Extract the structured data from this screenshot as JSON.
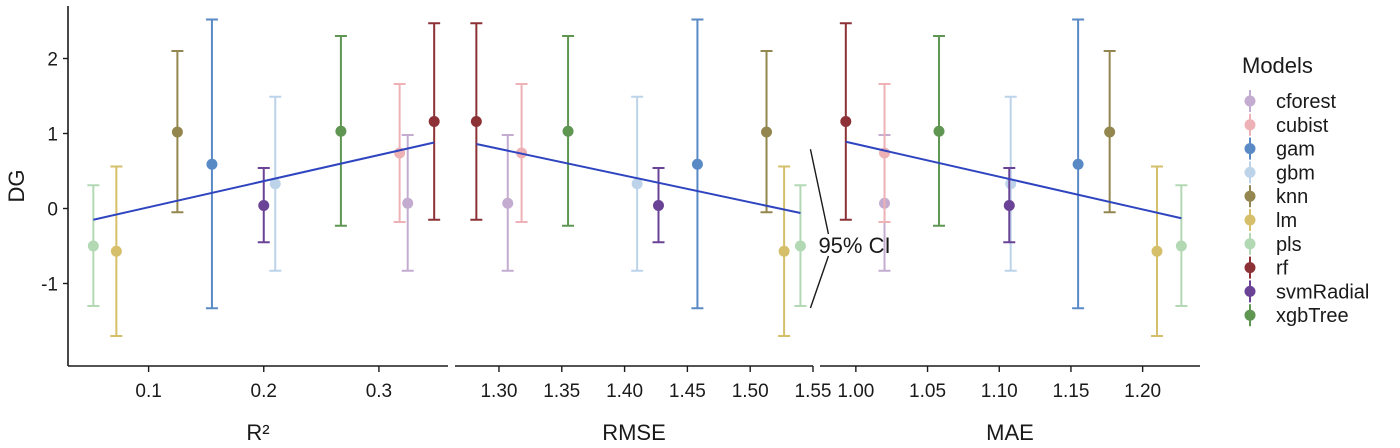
{
  "chart_data": {
    "type": "scatter",
    "ylabel": "DG",
    "ylim": [
      -2.1,
      2.7
    ],
    "y_ticks": [
      -1,
      0,
      1,
      2
    ],
    "y_tick_labels": [
      "-1",
      "0",
      "1",
      "2"
    ],
    "legend": {
      "title": "Models",
      "placement": "right",
      "entries": [
        {
          "name": "cforest",
          "color": "#c3acd0"
        },
        {
          "name": "cubist",
          "color": "#eeb1b5"
        },
        {
          "name": "gam",
          "color": "#5a8ac6"
        },
        {
          "name": "gbm",
          "color": "#bcd3ea"
        },
        {
          "name": "knn",
          "color": "#93874f"
        },
        {
          "name": "lm",
          "color": "#d6bf6a"
        },
        {
          "name": "pls",
          "color": "#b2d8b4"
        },
        {
          "name": "rf",
          "color": "#8c3236"
        },
        {
          "name": "svmRadial",
          "color": "#6a4396"
        },
        {
          "name": "xgbTree",
          "color": "#5e9652"
        }
      ]
    },
    "dg": {
      "cforest": {
        "y": 0.07,
        "lo": -0.83,
        "hi": 0.98
      },
      "cubist": {
        "y": 0.74,
        "lo": -0.18,
        "hi": 1.66
      },
      "gam": {
        "y": 0.59,
        "lo": -1.33,
        "hi": 2.52
      },
      "gbm": {
        "y": 0.33,
        "lo": -0.83,
        "hi": 1.49
      },
      "knn": {
        "y": 1.02,
        "lo": -0.05,
        "hi": 2.1
      },
      "lm": {
        "y": -0.57,
        "lo": -1.7,
        "hi": 0.56
      },
      "pls": {
        "y": -0.5,
        "lo": -1.3,
        "hi": 0.31
      },
      "rf": {
        "y": 1.16,
        "lo": -0.15,
        "hi": 2.47
      },
      "svmRadial": {
        "y": 0.04,
        "lo": -0.45,
        "hi": 0.54
      },
      "xgbTree": {
        "y": 1.03,
        "lo": -0.23,
        "hi": 2.3
      }
    },
    "panels": [
      {
        "xlabel": "R²",
        "xlim": [
          0.03,
          0.36
        ],
        "x_ticks": [
          0.1,
          0.2,
          0.3
        ],
        "x_tick_labels": [
          "0.1",
          "0.2",
          "0.3"
        ],
        "x": {
          "cforest": 0.325,
          "cubist": 0.318,
          "gam": 0.155,
          "gbm": 0.21,
          "knn": 0.125,
          "lm": 0.072,
          "pls": 0.052,
          "rf": 0.348,
          "svmRadial": 0.2,
          "xgbTree": 0.267
        },
        "trend": {
          "x": [
            0.052,
            0.348
          ],
          "y": [
            -0.15,
            0.88
          ]
        }
      },
      {
        "xlabel": "RMSE",
        "xlim": [
          1.265,
          1.55
        ],
        "x_ticks": [
          1.3,
          1.35,
          1.4,
          1.45,
          1.5,
          1.55
        ],
        "x_tick_labels": [
          "1.30",
          "1.35",
          "1.40",
          "1.45",
          "1.50",
          "1.55"
        ],
        "x": {
          "cforest": 1.307,
          "cubist": 1.318,
          "gam": 1.458,
          "gbm": 1.41,
          "knn": 1.513,
          "lm": 1.527,
          "pls": 1.54,
          "rf": 1.282,
          "svmRadial": 1.427,
          "xgbTree": 1.355
        },
        "trend": {
          "x": [
            1.282,
            1.54
          ],
          "y": [
            0.86,
            -0.06
          ]
        }
      },
      {
        "xlabel": "MAE",
        "xlim": [
          0.975,
          1.24
        ],
        "x_ticks": [
          1.0,
          1.05,
          1.1,
          1.15,
          1.2
        ],
        "x_tick_labels": [
          "1.00",
          "1.05",
          "1.10",
          "1.15",
          "1.20"
        ],
        "x": {
          "cforest": 1.02,
          "cubist": 1.02,
          "gam": 1.155,
          "gbm": 1.108,
          "knn": 1.177,
          "lm": 1.21,
          "pls": 1.227,
          "rf": 0.993,
          "svmRadial": 1.107,
          "xgbTree": 1.058
        },
        "trend": {
          "x": [
            0.993,
            1.227
          ],
          "y": [
            0.89,
            -0.13
          ]
        }
      }
    ],
    "annotation": {
      "text": "95% CI",
      "panel": 1,
      "model": "pls"
    }
  }
}
